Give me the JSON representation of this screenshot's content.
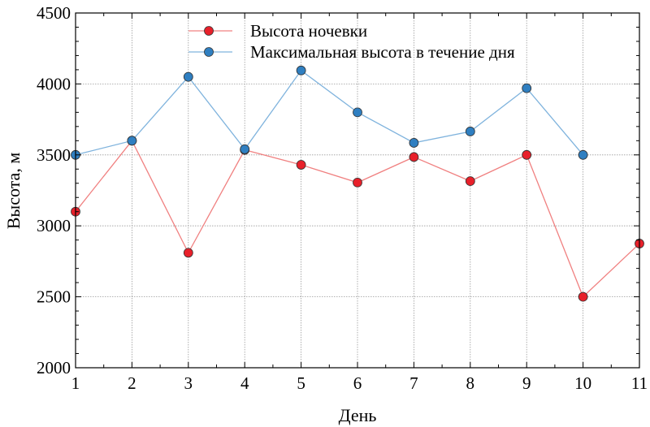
{
  "chart_data": {
    "type": "line",
    "x": [
      1,
      2,
      3,
      4,
      5,
      6,
      7,
      8,
      9,
      10,
      11
    ],
    "xlabel": "День",
    "ylabel": "Высота, м",
    "xlim": [
      1,
      11
    ],
    "ylim": [
      2000,
      4500
    ],
    "xticks": [
      "1",
      "2",
      "3",
      "4",
      "5",
      "6",
      "7",
      "8",
      "9",
      "10",
      "11"
    ],
    "yticks": [
      "2000",
      "2500",
      "3000",
      "3500",
      "4000",
      "4500"
    ],
    "grid": true,
    "legend_position": "top-center",
    "series": [
      {
        "name": "Высота ночевки",
        "color": "#e8202a",
        "line_color": "#f08080",
        "values": [
          3100,
          3600,
          2810,
          3535,
          3430,
          3305,
          3485,
          3315,
          3500,
          2500,
          2875
        ]
      },
      {
        "name": "Максимальная высота в течение дня",
        "color": "#2f7fc1",
        "line_color": "#7fb3dd",
        "values": [
          3500,
          3600,
          4050,
          3540,
          4095,
          3800,
          3585,
          3665,
          3970,
          3500,
          null
        ]
      }
    ]
  }
}
